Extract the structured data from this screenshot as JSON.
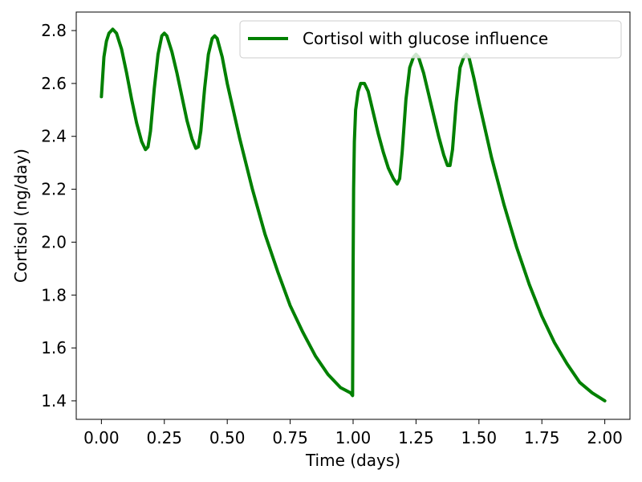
{
  "chart_data": {
    "type": "line",
    "title": "",
    "xlabel": "Time (days)",
    "ylabel": "Cortisol (ng/day)",
    "xlim": [
      -0.1,
      2.1
    ],
    "ylim": [
      1.33,
      2.87
    ],
    "xticks": [
      0.0,
      0.25,
      0.5,
      0.75,
      1.0,
      1.25,
      1.5,
      1.75,
      2.0
    ],
    "xtick_labels": [
      "0.00",
      "0.25",
      "0.50",
      "0.75",
      "1.00",
      "1.25",
      "1.50",
      "1.75",
      "2.00"
    ],
    "yticks": [
      1.4,
      1.6,
      1.8,
      2.0,
      2.2,
      2.4,
      2.6,
      2.8
    ],
    "ytick_labels": [
      "1.4",
      "1.6",
      "1.8",
      "2.0",
      "2.2",
      "2.4",
      "2.6",
      "2.8"
    ],
    "grid": false,
    "legend_position": "top-right",
    "series": [
      {
        "name": "Cortisol with glucose influence",
        "color": "#008000",
        "x": [
          0.0,
          0.01,
          0.02,
          0.03,
          0.045,
          0.06,
          0.08,
          0.1,
          0.12,
          0.14,
          0.16,
          0.175,
          0.185,
          0.195,
          0.21,
          0.225,
          0.24,
          0.25,
          0.26,
          0.28,
          0.3,
          0.32,
          0.34,
          0.36,
          0.375,
          0.385,
          0.395,
          0.41,
          0.425,
          0.44,
          0.45,
          0.46,
          0.48,
          0.5,
          0.55,
          0.6,
          0.65,
          0.7,
          0.75,
          0.8,
          0.85,
          0.9,
          0.95,
          0.99,
          0.998,
          1.0,
          1.002,
          1.005,
          1.01,
          1.02,
          1.03,
          1.045,
          1.06,
          1.08,
          1.1,
          1.12,
          1.14,
          1.16,
          1.175,
          1.185,
          1.195,
          1.21,
          1.225,
          1.24,
          1.25,
          1.26,
          1.28,
          1.3,
          1.32,
          1.34,
          1.36,
          1.375,
          1.385,
          1.395,
          1.41,
          1.425,
          1.44,
          1.45,
          1.46,
          1.48,
          1.5,
          1.55,
          1.6,
          1.65,
          1.7,
          1.75,
          1.8,
          1.85,
          1.9,
          1.95,
          2.0
        ],
        "y": [
          2.55,
          2.7,
          2.76,
          2.79,
          2.805,
          2.79,
          2.73,
          2.64,
          2.54,
          2.45,
          2.38,
          2.35,
          2.36,
          2.42,
          2.58,
          2.71,
          2.78,
          2.79,
          2.78,
          2.72,
          2.64,
          2.55,
          2.46,
          2.39,
          2.355,
          2.36,
          2.42,
          2.58,
          2.71,
          2.77,
          2.78,
          2.77,
          2.7,
          2.6,
          2.39,
          2.2,
          2.03,
          1.89,
          1.76,
          1.66,
          1.57,
          1.5,
          1.45,
          1.43,
          1.42,
          1.9,
          2.2,
          2.38,
          2.5,
          2.57,
          2.6,
          2.6,
          2.57,
          2.49,
          2.41,
          2.34,
          2.28,
          2.24,
          2.22,
          2.24,
          2.34,
          2.54,
          2.66,
          2.7,
          2.71,
          2.7,
          2.64,
          2.56,
          2.48,
          2.4,
          2.33,
          2.29,
          2.29,
          2.35,
          2.53,
          2.66,
          2.7,
          2.71,
          2.7,
          2.62,
          2.53,
          2.32,
          2.14,
          1.98,
          1.84,
          1.72,
          1.62,
          1.54,
          1.47,
          1.43,
          1.4
        ]
      }
    ]
  }
}
